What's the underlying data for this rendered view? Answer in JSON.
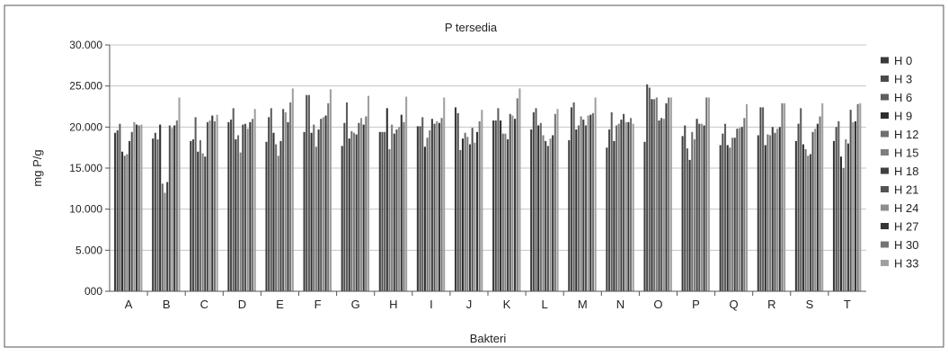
{
  "chart_data": {
    "type": "bar",
    "title": "P tersedia",
    "xlabel": "Bakteri",
    "ylabel": "mg P/g",
    "ylim": [
      0,
      30
    ],
    "yticks": [
      0,
      5,
      10,
      15,
      20,
      25,
      30
    ],
    "ytick_labels": [
      "000",
      "5.000",
      "10.000",
      "15.000",
      "20.000",
      "25.000",
      "30.000"
    ],
    "grid": true,
    "legend_position": "right",
    "categories": [
      "A",
      "B",
      "C",
      "D",
      "E",
      "F",
      "G",
      "H",
      "I",
      "J",
      "K",
      "L",
      "M",
      "N",
      "O",
      "P",
      "Q",
      "R",
      "S",
      "T"
    ],
    "series": [
      {
        "name": "H 0",
        "color": "#3a3a3a",
        "values": [
          19.3,
          18.6,
          18.3,
          20.6,
          18.2,
          19.4,
          17.7,
          19.4,
          20.1,
          22.4,
          20.8,
          19.7,
          18.4,
          17.5,
          18.2,
          18.9,
          17.8,
          19.0,
          18.3,
          18.3
        ]
      },
      {
        "name": "H 3",
        "color": "#4a4a4a",
        "values": [
          19.6,
          19.3,
          18.5,
          20.9,
          21.2,
          23.9,
          20.5,
          19.4,
          20.1,
          21.7,
          20.8,
          21.8,
          22.4,
          19.7,
          25.2,
          20.2,
          19.2,
          22.4,
          20.4,
          20.0
        ]
      },
      {
        "name": "H 6",
        "color": "#5e5e5e",
        "values": [
          20.4,
          18.5,
          21.2,
          22.3,
          22.3,
          23.9,
          23.0,
          19.4,
          21.2,
          17.2,
          22.3,
          22.3,
          23.0,
          21.8,
          24.8,
          17.4,
          20.4,
          22.4,
          22.3,
          20.7
        ]
      },
      {
        "name": "H 9",
        "color": "#2e2e2e",
        "values": [
          17.0,
          20.3,
          17.0,
          18.5,
          19.3,
          19.3,
          18.6,
          22.3,
          17.6,
          18.6,
          20.8,
          20.2,
          19.7,
          18.3,
          23.4,
          16.0,
          17.8,
          17.8,
          17.9,
          16.4
        ]
      },
      {
        "name": "H 12",
        "color": "#6e6e6e",
        "values": [
          16.5,
          13.1,
          18.4,
          19.0,
          17.9,
          20.3,
          19.5,
          17.3,
          18.7,
          19.3,
          19.2,
          20.5,
          20.2,
          20.2,
          23.4,
          19.4,
          17.5,
          19.1,
          17.3,
          15.0
        ]
      },
      {
        "name": "H 15",
        "color": "#7e7e7e",
        "values": [
          16.7,
          12.0,
          16.8,
          16.9,
          16.5,
          17.6,
          19.3,
          20.3,
          19.6,
          18.8,
          19.2,
          19.0,
          21.3,
          20.4,
          23.6,
          18.5,
          18.7,
          19.0,
          16.5,
          18.5
        ]
      },
      {
        "name": "H 18",
        "color": "#3f3f3f",
        "values": [
          18.3,
          13.3,
          16.4,
          20.3,
          18.3,
          19.7,
          19.1,
          19.2,
          21.0,
          17.9,
          18.5,
          18.3,
          20.9,
          20.9,
          20.8,
          21.0,
          18.7,
          20.0,
          16.7,
          18.0
        ]
      },
      {
        "name": "H 21",
        "color": "#535353",
        "values": [
          19.4,
          20.2,
          20.6,
          20.4,
          22.2,
          21.0,
          20.5,
          19.7,
          20.4,
          19.9,
          21.6,
          17.7,
          20.2,
          21.6,
          21.1,
          20.4,
          19.8,
          19.3,
          19.4,
          22.1
        ]
      },
      {
        "name": "H 24",
        "color": "#8e8e8e",
        "values": [
          20.6,
          19.9,
          20.8,
          19.8,
          21.8,
          21.2,
          21.1,
          20.0,
          20.7,
          18.1,
          21.4,
          18.6,
          21.4,
          20.6,
          21.0,
          20.4,
          19.9,
          19.8,
          19.8,
          20.6
        ]
      },
      {
        "name": "H 27",
        "color": "#353535",
        "values": [
          20.3,
          20.2,
          21.4,
          20.6,
          20.6,
          21.4,
          20.3,
          21.5,
          20.5,
          19.4,
          21.0,
          19.0,
          21.5,
          20.6,
          22.9,
          20.2,
          20.0,
          20.0,
          20.4,
          20.7
        ]
      },
      {
        "name": "H 30",
        "color": "#747474",
        "values": [
          20.2,
          20.8,
          20.7,
          21.0,
          23.0,
          22.9,
          21.3,
          20.6,
          21.1,
          20.7,
          23.5,
          21.6,
          21.7,
          21.1,
          23.6,
          23.6,
          21.1,
          22.9,
          21.3,
          22.8
        ]
      },
      {
        "name": "H 33",
        "color": "#a0a0a0",
        "values": [
          20.3,
          23.6,
          21.5,
          22.2,
          24.7,
          24.6,
          23.8,
          23.7,
          23.6,
          22.1,
          24.7,
          22.2,
          23.6,
          20.4,
          23.6,
          23.6,
          22.8,
          22.9,
          22.9,
          22.9
        ]
      }
    ]
  }
}
